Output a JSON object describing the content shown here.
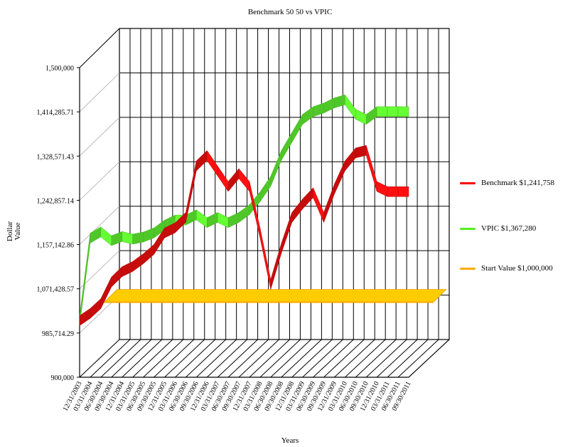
{
  "chart_data": {
    "type": "line",
    "title": "Benchmark 50 50 vs VPIC",
    "xlabel": "Years",
    "ylabel": "Dollar Value",
    "ylim": [
      900000,
      1500000
    ],
    "y_ticks": [
      "900,000",
      "985,714.29",
      "1,071,428.57",
      "1,157,142.86",
      "1,242,857.14",
      "1,328,571.43",
      "1,414,285.71",
      "1,500,000"
    ],
    "categories": [
      "12/31/2003",
      "03/31/2004",
      "06/30/2004",
      "09/30/2004",
      "12/31/2004",
      "03/31/2005",
      "06/30/2005",
      "09/30/2005",
      "12/31/2005",
      "03/31/2006",
      "06/30/2006",
      "09/30/2006",
      "12/31/2006",
      "03/31/2007",
      "06/30/2007",
      "09/30/2007",
      "12/31/2007",
      "03/31/2008",
      "06/30/2008",
      "09/30/2008",
      "12/31/2008",
      "03/31/2009",
      "06/30/2009",
      "09/30/2009",
      "12/31/2009",
      "03/31/2010",
      "06/30/2010",
      "09/30/2010",
      "12/31/2010",
      "03/31/2011",
      "06/30/2011",
      "09/30/2011"
    ],
    "grid": true,
    "three_d": true,
    "legend_position": "right",
    "series": [
      {
        "name": "Benchmark",
        "legend_label": "Benchmark  $1,241,758",
        "color": "#ff1010",
        "values": [
          1000000,
          1014000,
          1033000,
          1075000,
          1095000,
          1105000,
          1120000,
          1138000,
          1170000,
          1180000,
          1200000,
          1300000,
          1320000,
          1290000,
          1260000,
          1285000,
          1260000,
          1170000,
          1070000,
          1140000,
          1200000,
          1226000,
          1248000,
          1200000,
          1255000,
          1300000,
          1325000,
          1330000,
          1260000,
          1250000,
          1250000,
          1250000
        ]
      },
      {
        "name": "VPIC",
        "legend_label": "VPIC  $1,367,280",
        "color": "#66ff33",
        "values": [
          1000000,
          1160000,
          1172000,
          1155000,
          1163000,
          1158000,
          1162000,
          1170000,
          1185000,
          1195000,
          1195000,
          1205000,
          1190000,
          1200000,
          1190000,
          1200000,
          1215000,
          1240000,
          1270000,
          1320000,
          1355000,
          1390000,
          1405000,
          1412000,
          1422000,
          1428000,
          1400000,
          1390000,
          1405000,
          1405000,
          1405000,
          1405000
        ]
      },
      {
        "name": "Start Value",
        "legend_label": "Start Value $1,000,000",
        "color": "#ffaa00",
        "values": [
          1000000,
          1000000,
          1000000,
          1000000,
          1000000,
          1000000,
          1000000,
          1000000,
          1000000,
          1000000,
          1000000,
          1000000,
          1000000,
          1000000,
          1000000,
          1000000,
          1000000,
          1000000,
          1000000,
          1000000,
          1000000,
          1000000,
          1000000,
          1000000,
          1000000,
          1000000,
          1000000,
          1000000,
          1000000,
          1000000,
          1000000,
          1000000
        ]
      }
    ]
  }
}
